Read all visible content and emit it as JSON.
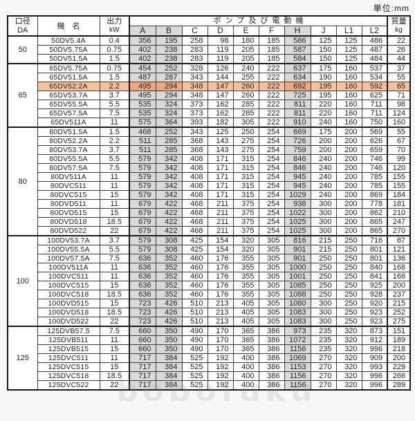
{
  "units_label": "単位:mm",
  "header": {
    "diameter_top": "口径",
    "diameter_bottom": "DA",
    "model": "機　名",
    "output_top": "出力",
    "output_bottom": "kW",
    "pump_motor_group": "ポンプ及び電動機",
    "dims": [
      "A",
      "B",
      "C",
      "D",
      "E",
      "F",
      "H",
      "J",
      "L1",
      "L2"
    ],
    "mass_top": "質量",
    "mass_bottom": "kg"
  },
  "shaded_columns": [
    "A",
    "B",
    "H"
  ],
  "colors": {
    "shaded_column": "#d9d9d9",
    "highlight_row": "#f6c19b",
    "highlight_row_shaded": "#eda87d",
    "border": "#3a3a3a",
    "page_bg": "#f7f7f7",
    "text": "#1f1f1f"
  },
  "highlighted_model": "65DV52.2A",
  "watermark": "bobofuku",
  "groups": [
    {
      "dia": "50",
      "rows": [
        {
          "model": "50DV5.4A",
          "kw": "0.4",
          "dims": [
            356,
            195,
            258,
            98,
            180,
            185,
            586,
            125,
            125,
            486
          ],
          "kg": 22
        },
        {
          "model": "50DV5.75A",
          "kw": "0.75",
          "dims": [
            402,
            238,
            283,
            119,
            205,
            185,
            587,
            150,
            125,
            487
          ],
          "kg": 26
        },
        {
          "model": "50DV51.5A",
          "kw": "1.5",
          "dims": [
            402,
            238,
            283,
            119,
            205,
            185,
            584,
            150,
            125,
            484
          ],
          "kg": 44
        }
      ]
    },
    {
      "dia": "65",
      "rows": [
        {
          "model": "65DV5.75A",
          "kw": "0.75",
          "dims": [
            454,
            252,
            328,
            126,
            240,
            222,
            637,
            175,
            160,
            537
          ],
          "kg": 37
        },
        {
          "model": "65DV51.5A",
          "kw": "1.5",
          "dims": [
            487,
            287,
            343,
            144,
            255,
            222,
            634,
            190,
            160,
            534
          ],
          "kg": 55
        },
        {
          "model": "65DV52.2A",
          "kw": "2.2",
          "dims": [
            495,
            294,
            348,
            147,
            260,
            222,
            692,
            195,
            160,
            592
          ],
          "kg": 65,
          "highlight": true
        },
        {
          "model": "65DV53.7A",
          "kw": "3.7",
          "dims": [
            495,
            294,
            348,
            147,
            260,
            222,
            725,
            195,
            160,
            625
          ],
          "kg": 71
        },
        {
          "model": "65DV55.5A",
          "kw": "5.5",
          "dims": [
            535,
            324,
            373,
            162,
            285,
            222,
            811,
            220,
            160,
            711
          ],
          "kg": 98
        },
        {
          "model": "65DV57.5A",
          "kw": "7.5",
          "dims": [
            535,
            324,
            373,
            162,
            285,
            222,
            811,
            220,
            160,
            711
          ],
          "kg": 124
        },
        {
          "model": "65DV511A",
          "kw": "11",
          "dims": [
            575,
            364,
            393,
            182,
            305,
            222,
            910,
            240,
            160,
            750
          ],
          "kg": 160
        }
      ]
    },
    {
      "dia": "80",
      "rows": [
        {
          "model": "80DV51.5A",
          "kw": "1.5",
          "dims": [
            468,
            252,
            343,
            125,
            250,
            254,
            669,
            175,
            200,
            569
          ],
          "kg": 55
        },
        {
          "model": "80DV52.2A",
          "kw": "2.2",
          "dims": [
            511,
            285,
            368,
            143,
            275,
            254,
            726,
            200,
            200,
            626
          ],
          "kg": 67
        },
        {
          "model": "80DV53.7A",
          "kw": "3.7",
          "dims": [
            511,
            285,
            368,
            143,
            275,
            254,
            759,
            200,
            200,
            659
          ],
          "kg": 70
        },
        {
          "model": "80DV55.5A",
          "kw": "5.5",
          "dims": [
            579,
            342,
            408,
            171,
            315,
            254,
            846,
            240,
            200,
            746
          ],
          "kg": 99
        },
        {
          "model": "80DV57.5A",
          "kw": "7.5",
          "dims": [
            579,
            342,
            408,
            171,
            315,
            254,
            846,
            240,
            200,
            746
          ],
          "kg": 120
        },
        {
          "model": "80DV511A",
          "kw": "11",
          "dims": [
            579,
            342,
            408,
            171,
            315,
            254,
            945,
            240,
            200,
            785
          ],
          "kg": 155
        },
        {
          "model": "80DVC511",
          "kw": "11",
          "dims": [
            579,
            342,
            408,
            171,
            315,
            254,
            945,
            240,
            200,
            785
          ],
          "kg": 155
        },
        {
          "model": "80DVC515",
          "kw": "15",
          "dims": [
            579,
            342,
            408,
            171,
            315,
            254,
            1029,
            240,
            200,
            869
          ],
          "kg": 184
        },
        {
          "model": "80DVD511",
          "kw": "11",
          "dims": [
            679,
            422,
            468,
            211,
            375,
            254,
            938,
            300,
            200,
            778
          ],
          "kg": 181
        },
        {
          "model": "80DVD515",
          "kw": "15",
          "dims": [
            679,
            422,
            468,
            211,
            375,
            254,
            1022,
            300,
            200,
            862
          ],
          "kg": 210
        },
        {
          "model": "80DVD518",
          "kw": "18.5",
          "dims": [
            679,
            422,
            468,
            211,
            375,
            254,
            1025,
            300,
            200,
            865
          ],
          "kg": 247
        },
        {
          "model": "80DVD522",
          "kw": "22",
          "dims": [
            679,
            422,
            468,
            211,
            375,
            254,
            1025,
            300,
            200,
            865
          ],
          "kg": 270
        }
      ]
    },
    {
      "dia": "100",
      "rows": [
        {
          "model": "100DV53.7A",
          "kw": "3.7",
          "dims": [
            579,
            308,
            425,
            154,
            320,
            305,
            816,
            215,
            250,
            716
          ],
          "kg": 87
        },
        {
          "model": "100DV55.5A",
          "kw": "5.5",
          "dims": [
            579,
            308,
            425,
            154,
            320,
            305,
            901,
            215,
            250,
            801
          ],
          "kg": 121
        },
        {
          "model": "100DV57.5A",
          "kw": "7.5",
          "dims": [
            636,
            352,
            460,
            176,
            355,
            305,
            901,
            250,
            250,
            801
          ],
          "kg": 136
        },
        {
          "model": "100DV511A",
          "kw": "11",
          "dims": [
            636,
            352,
            460,
            176,
            355,
            305,
            1000,
            250,
            250,
            840
          ],
          "kg": 168
        },
        {
          "model": "100DVC511",
          "kw": "11",
          "dims": [
            636,
            352,
            460,
            176,
            355,
            305,
            1001,
            250,
            250,
            841
          ],
          "kg": 168
        },
        {
          "model": "100DVC515",
          "kw": "15",
          "dims": [
            636,
            352,
            460,
            176,
            355,
            305,
            1085,
            250,
            250,
            925
          ],
          "kg": 200
        },
        {
          "model": "100DVC518",
          "kw": "18.5",
          "dims": [
            636,
            352,
            460,
            176,
            355,
            305,
            1088,
            250,
            250,
            928
          ],
          "kg": 237
        },
        {
          "model": "100DVD515",
          "kw": "15",
          "dims": [
            723,
            426,
            510,
            213,
            405,
            305,
            1080,
            300,
            250,
            920
          ],
          "kg": 215
        },
        {
          "model": "100DVD518",
          "kw": "18.5",
          "dims": [
            723,
            426,
            510,
            213,
            405,
            305,
            1083,
            300,
            250,
            923
          ],
          "kg": 252
        },
        {
          "model": "100DVD522",
          "kw": "22",
          "dims": [
            723,
            426,
            510,
            213,
            405,
            305,
            1083,
            300,
            250,
            923
          ],
          "kg": 275
        }
      ]
    },
    {
      "dia": "125",
      "rows": [
        {
          "model": "125DVB57.5",
          "kw": "7.5",
          "dims": [
            660,
            350,
            490,
            170,
            365,
            386,
            973,
            235,
            320,
            873
          ],
          "kg": 151
        },
        {
          "model": "125DVB511",
          "kw": "11",
          "dims": [
            660,
            350,
            490,
            170,
            365,
            386,
            1072,
            235,
            320,
            912
          ],
          "kg": 189
        },
        {
          "model": "125DVB515",
          "kw": "15",
          "dims": [
            660,
            350,
            490,
            170,
            365,
            386,
            1156,
            235,
            320,
            996
          ],
          "kg": 218
        },
        {
          "model": "125DVC511",
          "kw": "11",
          "dims": [
            717,
            384,
            525,
            192,
            400,
            386,
            1069,
            270,
            320,
            909
          ],
          "kg": 200
        },
        {
          "model": "125DVC515",
          "kw": "15",
          "dims": [
            717,
            384,
            525,
            192,
            400,
            386,
            1153,
            270,
            320,
            993
          ],
          "kg": 229
        },
        {
          "model": "125DVC518",
          "kw": "18.5",
          "dims": [
            717,
            384,
            525,
            192,
            400,
            386,
            1156,
            270,
            320,
            996
          ],
          "kg": 266
        },
        {
          "model": "125DVC522",
          "kw": "22",
          "dims": [
            717,
            384,
            525,
            192,
            400,
            386,
            1156,
            270,
            320,
            996
          ],
          "kg": 289
        }
      ]
    }
  ]
}
